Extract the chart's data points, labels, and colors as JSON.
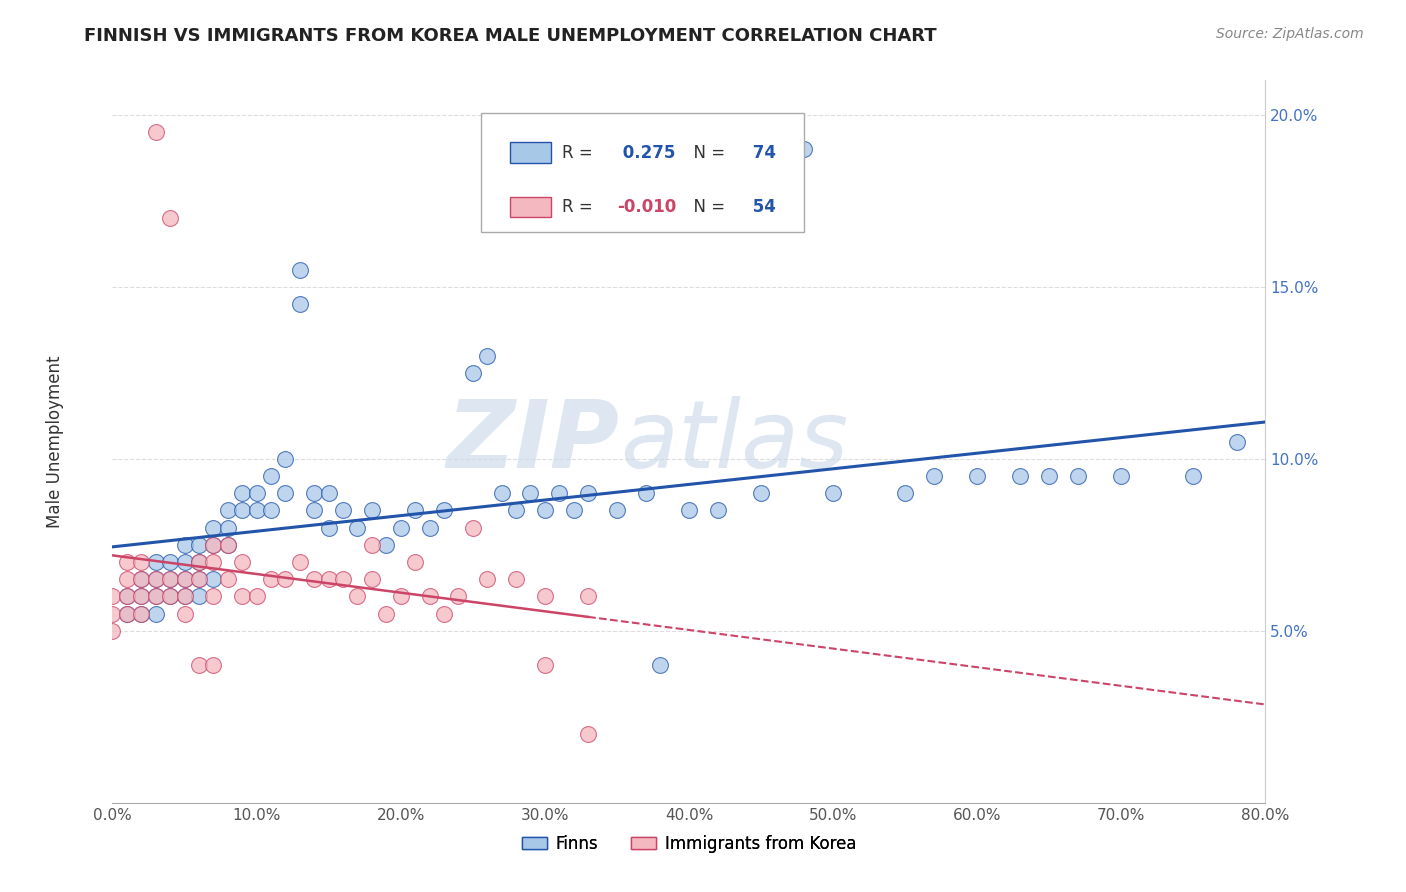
{
  "title": "FINNISH VS IMMIGRANTS FROM KOREA MALE UNEMPLOYMENT CORRELATION CHART",
  "source": "Source: ZipAtlas.com",
  "ylabel": "Male Unemployment",
  "xlabel": "",
  "legend_label1": "Finns",
  "legend_label2": "Immigrants from Korea",
  "r1": 0.275,
  "n1": 74,
  "r2": -0.01,
  "n2": 54,
  "color_finns": "#a8c8e8",
  "color_korea": "#f4b8c0",
  "trendline_finns": "#2255aa",
  "trendline_korea": "#cc4466",
  "xlim": [
    0.0,
    0.8
  ],
  "ylim": [
    0.0,
    0.21
  ],
  "xticks": [
    0.0,
    0.1,
    0.2,
    0.3,
    0.4,
    0.5,
    0.6,
    0.7,
    0.8
  ],
  "yticks": [
    0.05,
    0.1,
    0.15,
    0.2
  ],
  "finns_x": [
    0.01,
    0.01,
    0.02,
    0.02,
    0.02,
    0.03,
    0.03,
    0.03,
    0.03,
    0.04,
    0.04,
    0.04,
    0.05,
    0.05,
    0.05,
    0.05,
    0.06,
    0.06,
    0.06,
    0.06,
    0.07,
    0.07,
    0.07,
    0.08,
    0.08,
    0.08,
    0.09,
    0.09,
    0.1,
    0.1,
    0.11,
    0.11,
    0.12,
    0.12,
    0.13,
    0.13,
    0.14,
    0.14,
    0.15,
    0.15,
    0.16,
    0.17,
    0.18,
    0.19,
    0.2,
    0.21,
    0.22,
    0.23,
    0.25,
    0.26,
    0.27,
    0.28,
    0.29,
    0.3,
    0.31,
    0.32,
    0.33,
    0.35,
    0.37,
    0.38,
    0.4,
    0.42,
    0.45,
    0.48,
    0.5,
    0.55,
    0.57,
    0.6,
    0.63,
    0.65,
    0.67,
    0.7,
    0.75,
    0.78
  ],
  "finns_y": [
    0.06,
    0.055,
    0.065,
    0.06,
    0.055,
    0.07,
    0.065,
    0.06,
    0.055,
    0.065,
    0.06,
    0.07,
    0.075,
    0.065,
    0.06,
    0.07,
    0.065,
    0.06,
    0.075,
    0.07,
    0.08,
    0.075,
    0.065,
    0.085,
    0.08,
    0.075,
    0.09,
    0.085,
    0.085,
    0.09,
    0.095,
    0.085,
    0.1,
    0.09,
    0.145,
    0.155,
    0.085,
    0.09,
    0.08,
    0.09,
    0.085,
    0.08,
    0.085,
    0.075,
    0.08,
    0.085,
    0.08,
    0.085,
    0.125,
    0.13,
    0.09,
    0.085,
    0.09,
    0.085,
    0.09,
    0.085,
    0.09,
    0.085,
    0.09,
    0.04,
    0.085,
    0.085,
    0.09,
    0.19,
    0.09,
    0.09,
    0.095,
    0.095,
    0.095,
    0.095,
    0.095,
    0.095,
    0.095,
    0.105
  ],
  "korea_x": [
    0.0,
    0.0,
    0.0,
    0.01,
    0.01,
    0.01,
    0.01,
    0.02,
    0.02,
    0.02,
    0.02,
    0.03,
    0.03,
    0.03,
    0.04,
    0.04,
    0.04,
    0.05,
    0.05,
    0.05,
    0.06,
    0.06,
    0.07,
    0.07,
    0.07,
    0.08,
    0.08,
    0.09,
    0.09,
    0.1,
    0.11,
    0.12,
    0.13,
    0.14,
    0.15,
    0.16,
    0.17,
    0.18,
    0.19,
    0.2,
    0.21,
    0.22,
    0.23,
    0.24,
    0.25,
    0.26,
    0.28,
    0.3,
    0.33,
    0.18,
    0.06,
    0.07,
    0.3,
    0.33
  ],
  "korea_y": [
    0.06,
    0.055,
    0.05,
    0.065,
    0.06,
    0.055,
    0.07,
    0.065,
    0.06,
    0.055,
    0.07,
    0.065,
    0.06,
    0.195,
    0.065,
    0.06,
    0.17,
    0.065,
    0.06,
    0.055,
    0.07,
    0.065,
    0.075,
    0.07,
    0.06,
    0.075,
    0.065,
    0.07,
    0.06,
    0.06,
    0.065,
    0.065,
    0.07,
    0.065,
    0.065,
    0.065,
    0.06,
    0.065,
    0.055,
    0.06,
    0.07,
    0.06,
    0.055,
    0.06,
    0.08,
    0.065,
    0.065,
    0.06,
    0.06,
    0.075,
    0.04,
    0.04,
    0.04,
    0.02
  ],
  "watermark_zip": "ZIP",
  "watermark_atlas": "atlas",
  "background_color": "#ffffff",
  "grid_color": "#dddddd"
}
